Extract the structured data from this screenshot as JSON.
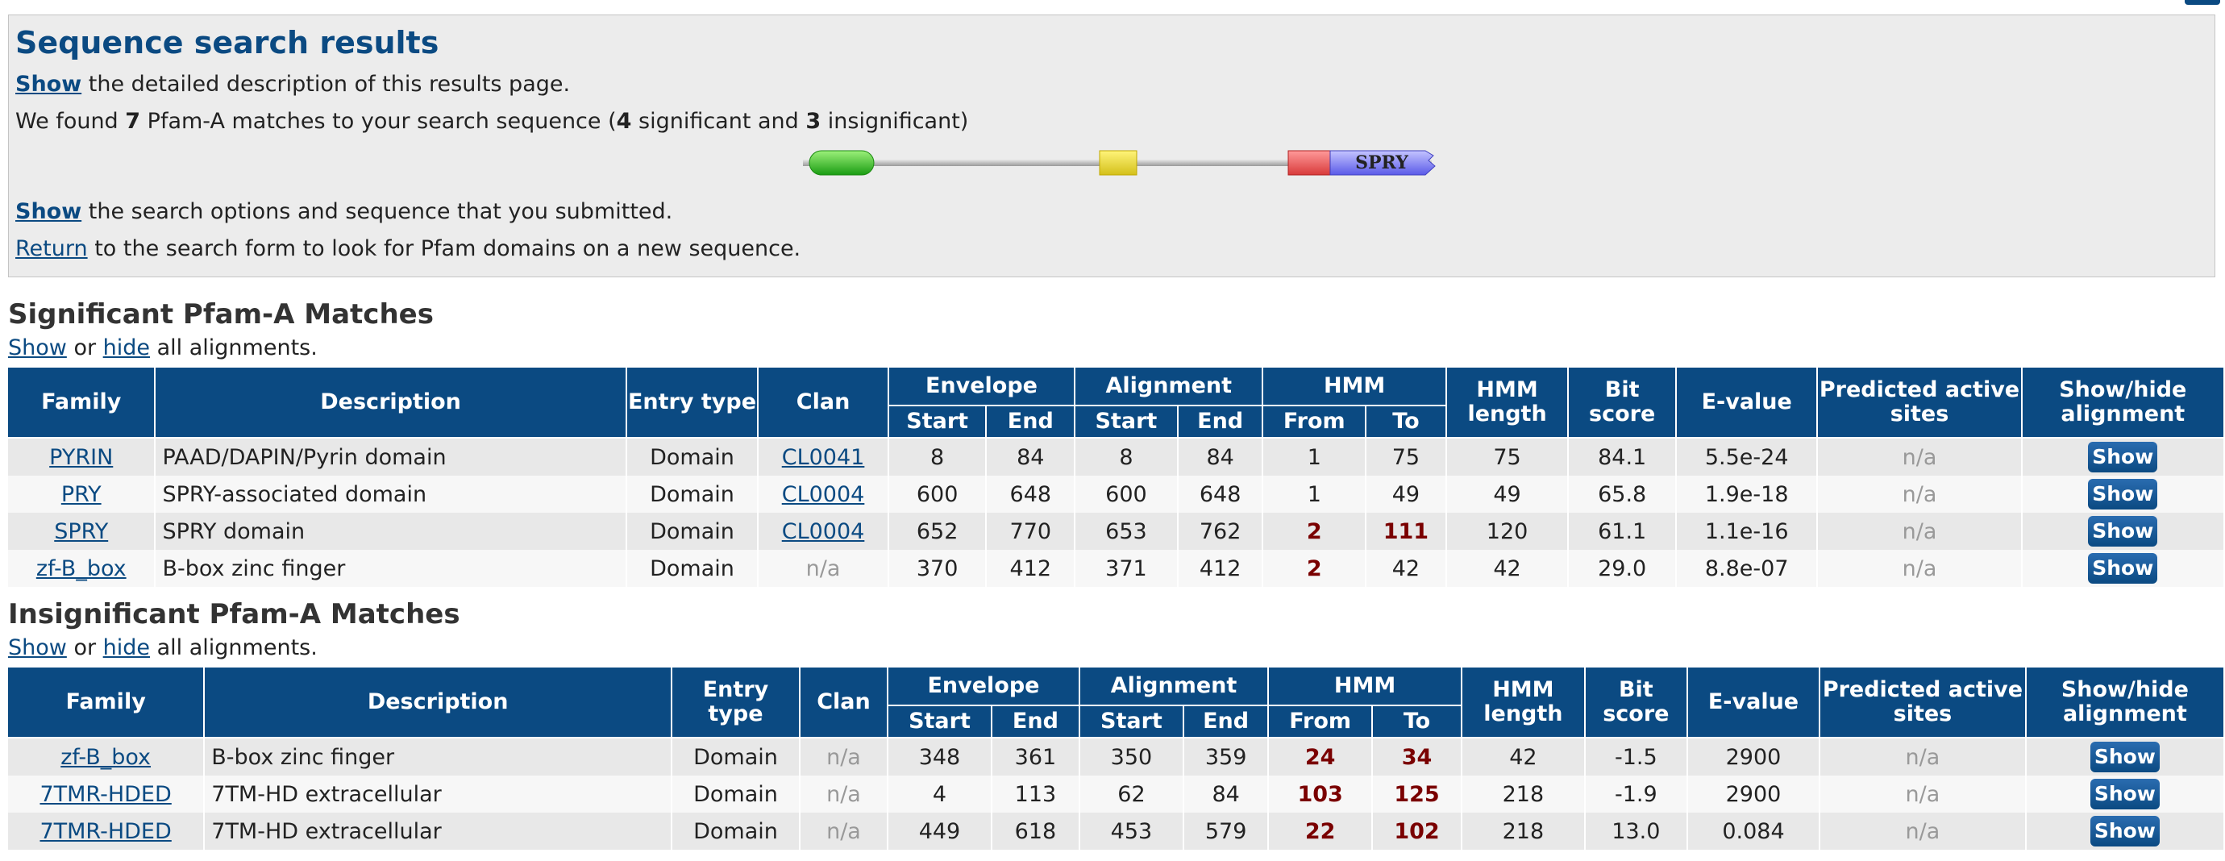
{
  "summary": {
    "title": "Sequence search results",
    "line1_link": "Show",
    "line1_text": " the detailed description of this results page.",
    "found_pre": "We found ",
    "found_total": "7",
    "found_mid": " Pfam-A matches to your search sequence (",
    "found_sig": "4",
    "found_mid2": " significant and ",
    "found_insig": "3",
    "found_post": " insignificant)",
    "graphic_label": "SPRY",
    "line3_link": "Show",
    "line3_text": " the search options and sequence that you submitted.",
    "line4_link": "Return",
    "line4_text": " to the search form to look for Pfam domains on a new sequence."
  },
  "significant": {
    "heading": "Significant Pfam-A Matches",
    "toggle": {
      "show": "Show",
      "or": " or ",
      "hide": "hide",
      "rest": " all alignments."
    },
    "rows": [
      {
        "family": "PYRIN",
        "description": "PAAD/DAPIN/Pyrin domain",
        "type": "Domain",
        "clan": "CL0041",
        "env_start": "8",
        "env_end": "84",
        "ali_start": "8",
        "ali_end": "84",
        "hmm_from": "1",
        "hmm_to": "75",
        "hmm_len": "75",
        "bit": "84.1",
        "evalue": "5.5e-24",
        "active": "n/a",
        "button": "Show"
      },
      {
        "family": "PRY",
        "description": "SPRY-associated domain",
        "type": "Domain",
        "clan": "CL0004",
        "env_start": "600",
        "env_end": "648",
        "ali_start": "600",
        "ali_end": "648",
        "hmm_from": "1",
        "hmm_to": "49",
        "hmm_len": "49",
        "bit": "65.8",
        "evalue": "1.9e-18",
        "active": "n/a",
        "button": "Show"
      },
      {
        "family": "SPRY",
        "description": "SPRY domain",
        "type": "Domain",
        "clan": "CL0004",
        "env_start": "652",
        "env_end": "770",
        "ali_start": "653",
        "ali_end": "762",
        "hmm_from": "2",
        "hmm_to": "111",
        "hmm_len": "120",
        "bit": "61.1",
        "evalue": "1.1e-16",
        "active": "n/a",
        "button": "Show"
      },
      {
        "family": "zf-B_box",
        "description": "B-box zinc finger",
        "type": "Domain",
        "clan": "n/a",
        "env_start": "370",
        "env_end": "412",
        "ali_start": "371",
        "ali_end": "412",
        "hmm_from": "2",
        "hmm_to": "42",
        "hmm_len": "42",
        "bit": "29.0",
        "evalue": "8.8e-07",
        "active": "n/a",
        "button": "Show"
      }
    ]
  },
  "insignificant": {
    "heading": "Insignificant Pfam-A Matches",
    "toggle": {
      "show": "Show",
      "or": " or ",
      "hide": "hide",
      "rest": " all alignments."
    },
    "rows": [
      {
        "family": "zf-B_box",
        "description": "B-box zinc finger",
        "type": "Domain",
        "clan": "n/a",
        "env_start": "348",
        "env_end": "361",
        "ali_start": "350",
        "ali_end": "359",
        "hmm_from": "24",
        "hmm_to": "34",
        "hmm_len": "42",
        "bit": "-1.5",
        "evalue": "2900",
        "active": "n/a",
        "button": "Show"
      },
      {
        "family": "7TMR-HDED",
        "description": "7TM-HD extracellular",
        "type": "Domain",
        "clan": "n/a",
        "env_start": "4",
        "env_end": "113",
        "ali_start": "62",
        "ali_end": "84",
        "hmm_from": "103",
        "hmm_to": "125",
        "hmm_len": "218",
        "bit": "-1.9",
        "evalue": "2900",
        "active": "n/a",
        "button": "Show"
      },
      {
        "family": "7TMR-HDED",
        "description": "7TM-HD extracellular",
        "type": "Domain",
        "clan": "n/a",
        "env_start": "449",
        "env_end": "618",
        "ali_start": "453",
        "ali_end": "579",
        "hmm_from": "22",
        "hmm_to": "102",
        "hmm_len": "218",
        "bit": "13.0",
        "evalue": "0.084",
        "active": "n/a",
        "button": "Show"
      }
    ]
  },
  "headers": {
    "family": "Family",
    "description": "Description",
    "entry_type": "Entry type",
    "clan": "Clan",
    "envelope": "Envelope",
    "alignment": "Alignment",
    "hmm": "HMM",
    "start": "Start",
    "end": "End",
    "from": "From",
    "to": "To",
    "hmm_length": "HMM length",
    "bit_score": "Bit score",
    "evalue": "E-value",
    "predicted": "Predicted active sites",
    "showhide": "Show/hide alignment"
  },
  "colors": {
    "header_blue": "#0b4a82",
    "row_odd": "#e8e8e8",
    "row_even": "#f7f7f7",
    "highlight": "#7a0000"
  }
}
